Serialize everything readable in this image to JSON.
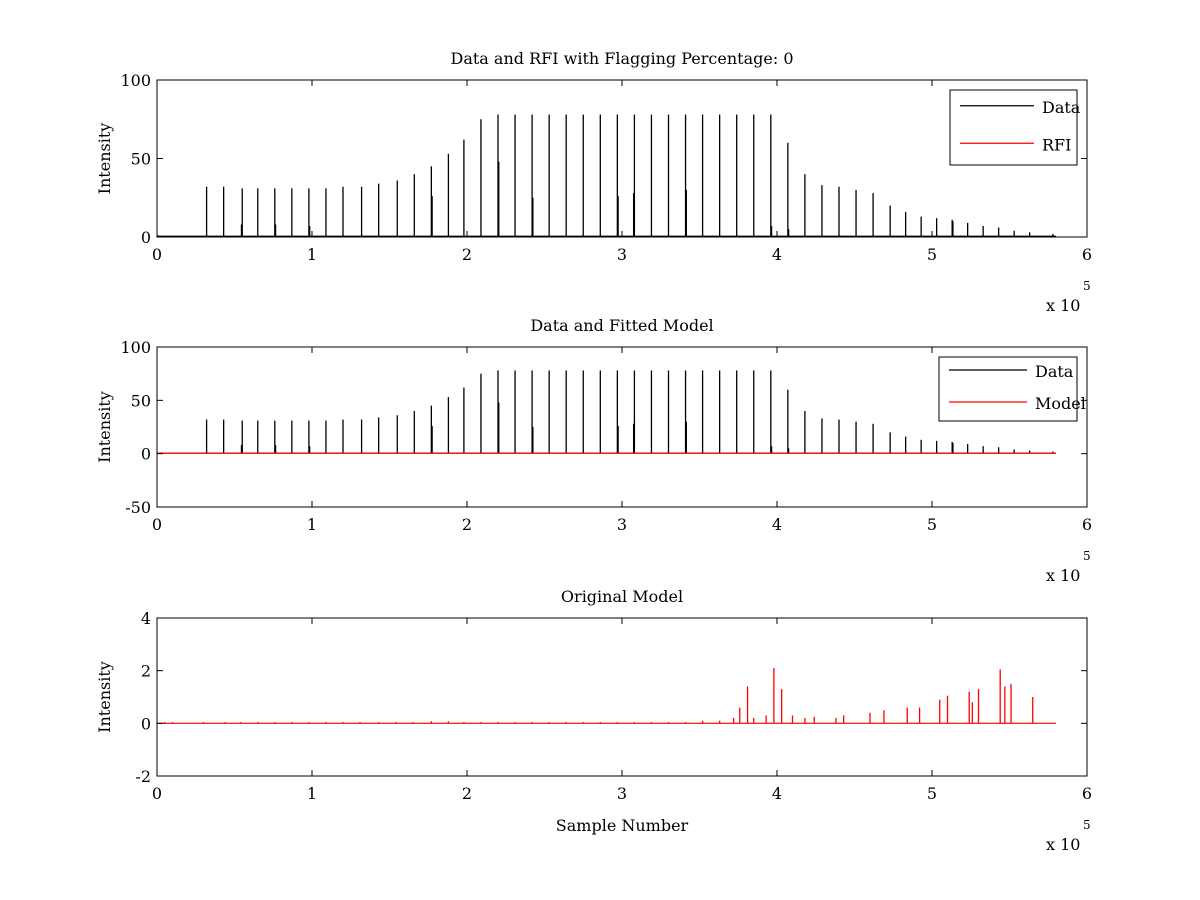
{
  "chart_data": [
    {
      "type": "line",
      "title": "Data and RFI with Flagging Percentage: 0",
      "xlabel": "",
      "ylabel": "Intensity",
      "xlim": [
        0,
        600000
      ],
      "ylim": [
        0,
        100
      ],
      "xticks": [
        "0",
        "1",
        "2",
        "3",
        "4",
        "5",
        "6"
      ],
      "yticks": [
        "0",
        "50",
        "100"
      ],
      "x_exponent_base": "x 10",
      "x_exponent_power": "5",
      "legend_position": "top-right",
      "grid": false,
      "series": [
        {
          "name": "Data",
          "color": "#000000",
          "mode": "spikes",
          "baseline": 0.5,
          "x": [
            800,
            32000,
            43000,
            55000,
            65000,
            76000,
            87000,
            98000,
            109000,
            120000,
            132000,
            143000,
            155000,
            166000,
            177000,
            188000,
            198000,
            209000,
            220000,
            231000,
            242000,
            253000,
            264000,
            275000,
            286000,
            297000,
            308000,
            319000,
            330000,
            341000,
            352000,
            363000,
            374000,
            385000,
            396000,
            407000,
            418000,
            429000,
            440000,
            451000,
            462000,
            473000,
            483000,
            493000,
            503000,
            513000,
            523000,
            533000,
            543000,
            553000,
            563000,
            578000,
            54500,
            76500,
            98500,
            177500,
            220500,
            242500,
            297500,
            307500,
            341500,
            396500,
            407500,
            513500
          ],
          "y": [
            1,
            32,
            32,
            31,
            31,
            31,
            31,
            31,
            31,
            32,
            32,
            34,
            36,
            40,
            45,
            53,
            62,
            75,
            78,
            78,
            78,
            78,
            78,
            78,
            78,
            78,
            78,
            78,
            78,
            78,
            78,
            78,
            78,
            78,
            78,
            60,
            40,
            33,
            32,
            30,
            28,
            20,
            16,
            13,
            12,
            11,
            9,
            7,
            6,
            4,
            3,
            2,
            8,
            8,
            7,
            26,
            48,
            25,
            26,
            28,
            30,
            7,
            5,
            10
          ]
        },
        {
          "name": "RFI",
          "color": "#ff0000",
          "mode": "none",
          "x": [],
          "y": []
        }
      ]
    },
    {
      "type": "line",
      "title": "Data and Fitted Model",
      "xlabel": "",
      "ylabel": "Intensity",
      "xlim": [
        0,
        600000
      ],
      "ylim": [
        -50,
        100
      ],
      "xticks": [
        "0",
        "1",
        "2",
        "3",
        "4",
        "5",
        "6"
      ],
      "yticks": [
        "-50",
        "0",
        "50",
        "100"
      ],
      "x_exponent_base": "x 10",
      "x_exponent_power": "5",
      "legend_position": "top-right",
      "grid": false,
      "series": [
        {
          "name": "Data",
          "color": "#000000",
          "mode": "spikes",
          "baseline": 0.5,
          "x": [
            800,
            32000,
            43000,
            55000,
            65000,
            76000,
            87000,
            98000,
            109000,
            120000,
            132000,
            143000,
            155000,
            166000,
            177000,
            188000,
            198000,
            209000,
            220000,
            231000,
            242000,
            253000,
            264000,
            275000,
            286000,
            297000,
            308000,
            319000,
            330000,
            341000,
            352000,
            363000,
            374000,
            385000,
            396000,
            407000,
            418000,
            429000,
            440000,
            451000,
            462000,
            473000,
            483000,
            493000,
            503000,
            513000,
            523000,
            533000,
            543000,
            553000,
            563000,
            578000,
            54500,
            76500,
            98500,
            177500,
            220500,
            242500,
            297500,
            307500,
            341500,
            396500,
            407500,
            513500
          ],
          "y": [
            1,
            32,
            32,
            31,
            31,
            31,
            31,
            31,
            31,
            32,
            32,
            34,
            36,
            40,
            45,
            53,
            62,
            75,
            78,
            78,
            78,
            78,
            78,
            78,
            78,
            78,
            78,
            78,
            78,
            78,
            78,
            78,
            78,
            78,
            78,
            60,
            40,
            33,
            32,
            30,
            28,
            20,
            16,
            13,
            12,
            11,
            9,
            7,
            6,
            4,
            3,
            2,
            8,
            8,
            7,
            26,
            48,
            25,
            26,
            28,
            30,
            7,
            5,
            10
          ]
        },
        {
          "name": "Model",
          "color": "#ff0000",
          "mode": "line",
          "x": [
            0,
            580000
          ],
          "y": [
            0.5,
            0.5
          ]
        }
      ]
    },
    {
      "type": "line",
      "title": "Original Model",
      "xlabel": "Sample Number",
      "ylabel": "Intensity",
      "xlim": [
        0,
        600000
      ],
      "ylim": [
        -2,
        4
      ],
      "xticks": [
        "0",
        "1",
        "2",
        "3",
        "4",
        "5",
        "6"
      ],
      "yticks": [
        "-2",
        "0",
        "2",
        "4"
      ],
      "x_exponent_base": "x 10",
      "x_exponent_power": "5",
      "legend_position": "none",
      "grid": false,
      "series": [
        {
          "color": "#ff0000",
          "mode": "spikes",
          "baseline": 0,
          "x": [
            5000,
            10000,
            30000,
            44000,
            54000,
            65000,
            76000,
            87000,
            98000,
            109000,
            120000,
            131000,
            143000,
            154000,
            165000,
            177000,
            188000,
            198000,
            209000,
            220000,
            231000,
            242000,
            253000,
            264000,
            275000,
            286000,
            297000,
            308000,
            319000,
            330000,
            341000,
            352000,
            363000,
            372000,
            376000,
            381000,
            385000,
            393000,
            398000,
            403000,
            410000,
            418000,
            424000,
            438000,
            443000,
            460000,
            469000,
            484000,
            492000,
            505000,
            510000,
            524000,
            526000,
            530000,
            544000,
            547000,
            551000,
            565000
          ],
          "y": [
            0.05,
            0.05,
            0.05,
            0.05,
            0.05,
            0.05,
            0.05,
            0.05,
            0.05,
            0.05,
            0.05,
            0.05,
            0.05,
            0.05,
            0.05,
            0.08,
            0.08,
            0.05,
            0.05,
            0.05,
            0.05,
            0.05,
            0.05,
            0.05,
            0.05,
            0.05,
            0.05,
            0.05,
            0.05,
            0.05,
            0.05,
            0.1,
            0.1,
            0.2,
            0.6,
            1.4,
            0.2,
            0.3,
            2.1,
            1.3,
            0.3,
            0.2,
            0.25,
            0.2,
            0.3,
            0.4,
            0.5,
            0.6,
            0.6,
            0.9,
            1.05,
            1.2,
            0.8,
            1.3,
            2.05,
            1.4,
            1.5,
            1.0
          ]
        }
      ]
    }
  ]
}
